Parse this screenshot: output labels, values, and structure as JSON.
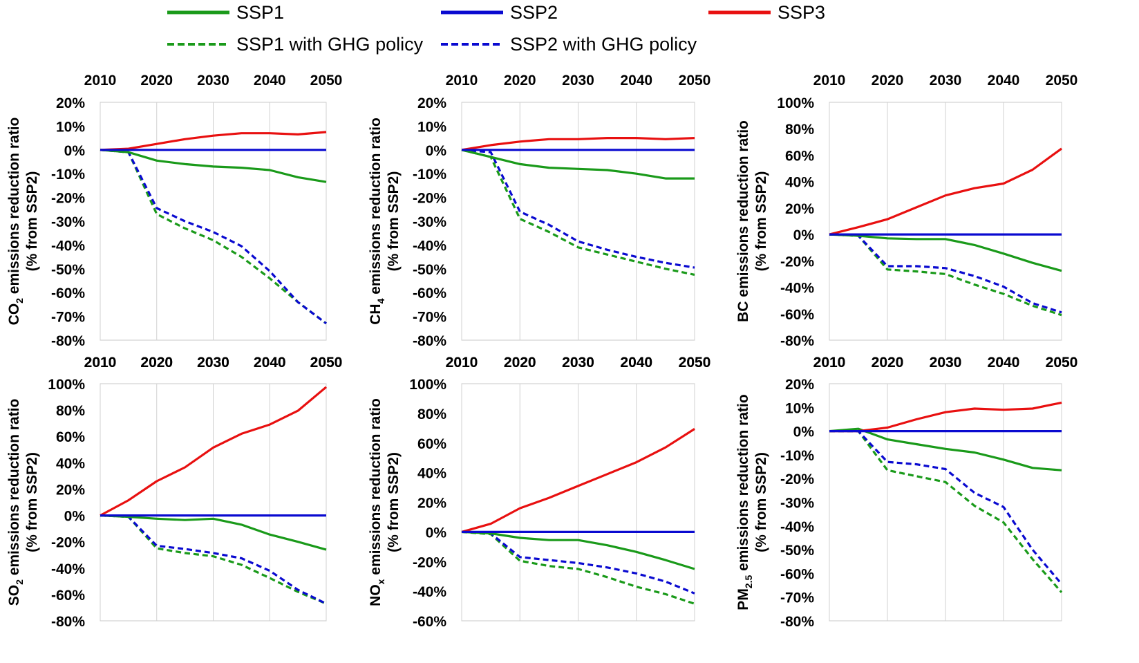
{
  "legend": [
    {
      "label": "SSP1",
      "color": "#1a9a1a",
      "dashed": false
    },
    {
      "label": "SSP2",
      "color": "#0a0ad0",
      "dashed": false
    },
    {
      "label": "SSP3",
      "color": "#e81010",
      "dashed": false
    },
    {
      "label": "SSP1 with GHG policy",
      "color": "#1a9a1a",
      "dashed": true
    },
    {
      "label": "SSP2 with GHG policy",
      "color": "#0a0ad0",
      "dashed": true
    }
  ],
  "chart_data": [
    {
      "type": "line",
      "ylabel_main": "CO",
      "ylabel_sub": "2",
      "ylabel_rest": " emissions reduction ratio",
      "ylabel_line2": "(% from SSP2)",
      "x": [
        2010,
        2015,
        2020,
        2025,
        2030,
        2035,
        2040,
        2045,
        2050
      ],
      "x_ticks": [
        "2010",
        "2020",
        "2030",
        "2040",
        "2050"
      ],
      "ylim": [
        -80,
        20
      ],
      "y_ticks": [
        "20%",
        "10%",
        "0%",
        "-10%",
        "-20%",
        "-30%",
        "-40%",
        "-50%",
        "-60%",
        "-70%",
        "-80%"
      ],
      "y_step": 10,
      "series": [
        {
          "name": "SSP1",
          "values": [
            0,
            -1,
            -4.5,
            -6,
            -7,
            -7.5,
            -8.5,
            -11.5,
            -13.5
          ]
        },
        {
          "name": "SSP2",
          "values": [
            0,
            0,
            0,
            0,
            0,
            0,
            0,
            0,
            0
          ]
        },
        {
          "name": "SSP3",
          "values": [
            0,
            0.5,
            2.5,
            4.5,
            6,
            7,
            7,
            6.5,
            7.5
          ]
        },
        {
          "name": "SSP1 with GHG policy",
          "values": [
            0,
            -1,
            -27,
            -33,
            -38,
            -45,
            -54,
            -64,
            -73
          ]
        },
        {
          "name": "SSP2 with GHG policy",
          "values": [
            0,
            -1,
            -24.5,
            -30,
            -34.5,
            -40.5,
            -51,
            -64,
            -73
          ]
        }
      ]
    },
    {
      "type": "line",
      "ylabel_main": "CH",
      "ylabel_sub": "4",
      "ylabel_rest": " emissions reduction ratio",
      "ylabel_line2": "(% from SSP2)",
      "x": [
        2010,
        2015,
        2020,
        2025,
        2030,
        2035,
        2040,
        2045,
        2050
      ],
      "x_ticks": [
        "2010",
        "2020",
        "2030",
        "2040",
        "2050"
      ],
      "ylim": [
        -80,
        20
      ],
      "y_ticks": [
        "20%",
        "10%",
        "0%",
        "-10%",
        "-20%",
        "-30%",
        "-40%",
        "-50%",
        "-60%",
        "-70%",
        "-80%"
      ],
      "y_step": 10,
      "series": [
        {
          "name": "SSP1",
          "values": [
            0,
            -3,
            -6,
            -7.5,
            -8,
            -8.5,
            -10,
            -12,
            -12
          ]
        },
        {
          "name": "SSP2",
          "values": [
            0,
            0,
            0,
            0,
            0,
            0,
            0,
            0,
            0
          ]
        },
        {
          "name": "SSP3",
          "values": [
            0,
            2,
            3.5,
            4.5,
            4.5,
            5,
            5,
            4.5,
            5
          ]
        },
        {
          "name": "SSP1 with GHG policy",
          "values": [
            0,
            -3,
            -29,
            -34.5,
            -41,
            -44,
            -47,
            -50,
            -52.5
          ]
        },
        {
          "name": "SSP2 with GHG policy",
          "values": [
            0,
            -1,
            -26,
            -31.5,
            -38.5,
            -42,
            -45,
            -47.5,
            -49.5
          ]
        }
      ]
    },
    {
      "type": "line",
      "ylabel_main": "BC",
      "ylabel_sub": "",
      "ylabel_rest": " emissions reduction ratio",
      "ylabel_line2": "(% from SSP2)",
      "x": [
        2010,
        2015,
        2020,
        2025,
        2030,
        2035,
        2040,
        2045,
        2050
      ],
      "x_ticks": [
        "2010",
        "2020",
        "2030",
        "2040",
        "2050"
      ],
      "ylim": [
        -80,
        100
      ],
      "y_ticks": [
        "100%",
        "80%",
        "60%",
        "40%",
        "20%",
        "0%",
        "-20%",
        "-40%",
        "-60%",
        "-80%"
      ],
      "y_step": 20,
      "series": [
        {
          "name": "SSP1",
          "values": [
            0,
            -1,
            -3,
            -3.5,
            -3.5,
            -8,
            -14.5,
            -21.5,
            -27.5
          ]
        },
        {
          "name": "SSP2",
          "values": [
            0,
            0,
            0,
            0,
            0,
            0,
            0,
            0,
            0
          ]
        },
        {
          "name": "SSP3",
          "values": [
            0,
            5.5,
            11.5,
            20.5,
            29.5,
            35,
            38.5,
            49,
            65
          ]
        },
        {
          "name": "SSP1 with GHG policy",
          "values": [
            0,
            -1,
            -26.5,
            -28,
            -30,
            -38,
            -45,
            -54,
            -61
          ]
        },
        {
          "name": "SSP2 with GHG policy",
          "values": [
            0,
            -1,
            -24,
            -24,
            -25.5,
            -31.5,
            -39.5,
            -52,
            -59
          ]
        }
      ]
    },
    {
      "type": "line",
      "ylabel_main": "SO",
      "ylabel_sub": "2",
      "ylabel_rest": " emissions reduction ratio",
      "ylabel_line2": "(% from SSP2)",
      "x": [
        2010,
        2015,
        2020,
        2025,
        2030,
        2035,
        2040,
        2045,
        2050
      ],
      "x_ticks": [
        "2010",
        "2020",
        "2030",
        "2040",
        "2050"
      ],
      "ylim": [
        -80,
        100
      ],
      "y_ticks": [
        "100%",
        "80%",
        "60%",
        "40%",
        "20%",
        "0%",
        "-20%",
        "-40%",
        "-60%",
        "-80%"
      ],
      "y_step": 20,
      "series": [
        {
          "name": "SSP1",
          "values": [
            0,
            -1,
            -2.5,
            -3.5,
            -2.5,
            -7,
            -14.5,
            -20,
            -26
          ]
        },
        {
          "name": "SSP2",
          "values": [
            0,
            0,
            0,
            0,
            0,
            0,
            0,
            0,
            0
          ]
        },
        {
          "name": "SSP3",
          "values": [
            0,
            11.5,
            26,
            36.5,
            51.5,
            62,
            69,
            79.5,
            97.5
          ]
        },
        {
          "name": "SSP1 with GHG policy",
          "values": [
            0,
            -1,
            -25,
            -28.5,
            -31,
            -37.5,
            -47.5,
            -58,
            -67
          ]
        },
        {
          "name": "SSP2 with GHG policy",
          "values": [
            0,
            -1,
            -23,
            -25.5,
            -28.5,
            -32.5,
            -42,
            -56.5,
            -67
          ]
        }
      ]
    },
    {
      "type": "line",
      "ylabel_main": "NO",
      "ylabel_sub": "x",
      "ylabel_rest": " emissions reduction ratio",
      "ylabel_line2": "(% from SSP2)",
      "x": [
        2010,
        2015,
        2020,
        2025,
        2030,
        2035,
        2040,
        2045,
        2050
      ],
      "x_ticks": [
        "2010",
        "2020",
        "2030",
        "2040",
        "2050"
      ],
      "ylim": [
        -60,
        100
      ],
      "y_ticks": [
        "100%",
        "80%",
        "60%",
        "40%",
        "20%",
        "0%",
        "-20%",
        "-40%",
        "-60%"
      ],
      "y_step": 20,
      "series": [
        {
          "name": "SSP1",
          "values": [
            0,
            -1,
            -4,
            -5.5,
            -5.5,
            -9,
            -13.5,
            -19,
            -25
          ]
        },
        {
          "name": "SSP2",
          "values": [
            0,
            0,
            0,
            0,
            0,
            0,
            0,
            0,
            0
          ]
        },
        {
          "name": "SSP3",
          "values": [
            0,
            5.5,
            16,
            23,
            31,
            39,
            47,
            57,
            69.5
          ]
        },
        {
          "name": "SSP1 with GHG policy",
          "values": [
            0,
            -1.5,
            -19.5,
            -23,
            -25,
            -30.5,
            -37,
            -42,
            -48.5
          ]
        },
        {
          "name": "SSP2 with GHG policy",
          "values": [
            0,
            -1,
            -17,
            -19,
            -21,
            -24,
            -28,
            -33.5,
            -41.5
          ]
        }
      ]
    },
    {
      "type": "line",
      "ylabel_main": "PM",
      "ylabel_sub": "2.5",
      "ylabel_rest": " emissions reduction ratio",
      "ylabel_line2": "(% from SSP2)",
      "x": [
        2010,
        2015,
        2020,
        2025,
        2030,
        2035,
        2040,
        2045,
        2050
      ],
      "x_ticks": [
        "2010",
        "2020",
        "2030",
        "2040",
        "2050"
      ],
      "ylim": [
        -80,
        20
      ],
      "y_ticks": [
        "20%",
        "10%",
        "0%",
        "-10%",
        "-20%",
        "-30%",
        "-40%",
        "-50%",
        "-60%",
        "-70%",
        "-80%"
      ],
      "y_step": 10,
      "series": [
        {
          "name": "SSP1",
          "values": [
            0,
            1,
            -3.5,
            -5.5,
            -7.5,
            -9,
            -12,
            -15.5,
            -16.5
          ]
        },
        {
          "name": "SSP2",
          "values": [
            0,
            0,
            0,
            0,
            0,
            0,
            0,
            0,
            0
          ]
        },
        {
          "name": "SSP3",
          "values": [
            0,
            0,
            1.5,
            5,
            8,
            9.5,
            9,
            9.5,
            12
          ]
        },
        {
          "name": "SSP1 with GHG policy",
          "values": [
            0,
            0,
            -16.5,
            -19,
            -21.5,
            -31.5,
            -38.5,
            -54,
            -68
          ]
        },
        {
          "name": "SSP2 with GHG policy",
          "values": [
            0,
            0,
            -13,
            -14,
            -16,
            -26,
            -32,
            -50,
            -64.5
          ]
        }
      ]
    }
  ]
}
